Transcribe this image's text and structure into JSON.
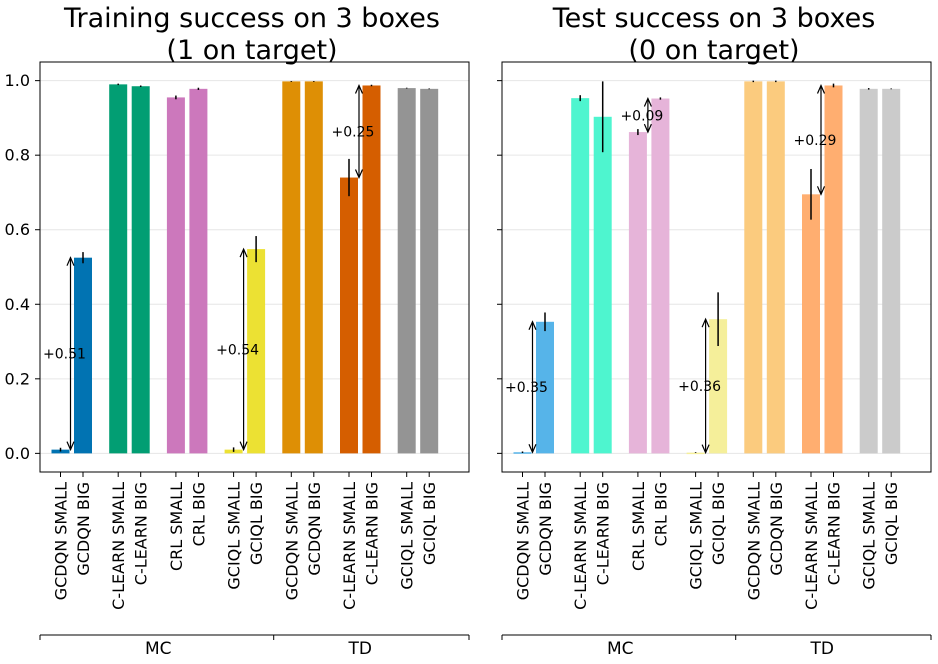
{
  "chart_data": [
    {
      "type": "bar",
      "title": [
        "Training success on 3 boxes",
        "(1 on target)"
      ],
      "categories": [
        "GCDQN SMALL",
        "GCDQN BIG",
        "C-LEARN SMALL",
        "C-LEARN BIG",
        "CRL SMALL",
        "CRL BIG",
        "GCIQL SMALL",
        "GCIQL BIG",
        "GCDQN SMALL",
        "GCDQN BIG",
        "C-LEARN SMALL",
        "C-LEARN BIG",
        "GCIQL SMALL",
        "GCIQL BIG"
      ],
      "values": [
        0.01,
        0.525,
        0.99,
        0.985,
        0.955,
        0.978,
        0.01,
        0.548,
        0.998,
        0.998,
        0.74,
        0.987,
        0.98,
        0.978
      ],
      "errors": [
        0.005,
        0.015,
        0.002,
        0.002,
        0.005,
        0.003,
        0.006,
        0.035,
        0.001,
        0.001,
        0.05,
        0.002,
        0.001,
        0.001
      ],
      "colors": [
        "#0173b2",
        "#0173b2",
        "#029e73",
        "#029e73",
        "#cc78bc",
        "#cc78bc",
        "#ece133",
        "#ece133",
        "#de8f05",
        "#de8f05",
        "#d55e00",
        "#d55e00",
        "#949494",
        "#949494"
      ],
      "groups": [
        {
          "label": "MC",
          "start": 0,
          "end": 7
        },
        {
          "label": "TD",
          "start": 8,
          "end": 13
        }
      ],
      "annotations": [
        {
          "from": 0,
          "to": 1,
          "text": "+0.51"
        },
        {
          "from": 6,
          "to": 7,
          "text": "+0.54"
        },
        {
          "from": 10,
          "to": 11,
          "text": "+0.25"
        }
      ],
      "yticks": [
        "0.0",
        "0.2",
        "0.4",
        "0.6",
        "0.8",
        "1.0"
      ],
      "ylim": [
        -0.05,
        1.05
      ],
      "grid": true
    },
    {
      "type": "bar",
      "title": [
        "Test success on 3 boxes",
        "(0 on target)"
      ],
      "categories": [
        "GCDQN SMALL",
        "GCDQN BIG",
        "C-LEARN SMALL",
        "C-LEARN BIG",
        "CRL SMALL",
        "CRL BIG",
        "GCIQL SMALL",
        "GCIQL BIG",
        "GCDQN SMALL",
        "GCDQN BIG",
        "C-LEARN SMALL",
        "C-LEARN BIG",
        "GCIQL SMALL",
        "GCIQL BIG"
      ],
      "values": [
        0.003,
        0.353,
        0.953,
        0.903,
        0.862,
        0.952,
        0.002,
        0.36,
        0.998,
        0.998,
        0.695,
        0.987,
        0.978,
        0.978
      ],
      "errors": [
        0.002,
        0.025,
        0.008,
        0.095,
        0.008,
        0.003,
        0.001,
        0.072,
        0.002,
        0.002,
        0.068,
        0.005,
        0.002,
        0.001
      ],
      "colors": [
        "#56b4e9",
        "#56b4e9",
        "#4ef5cf",
        "#4ef5cf",
        "#e6b4d9",
        "#e6b4d9",
        "#f5ef9a",
        "#f5ef9a",
        "#fbcb7e",
        "#fbcb7e",
        "#ffae70",
        "#ffae70",
        "#cbcbcb",
        "#cbcbcb"
      ],
      "groups": [
        {
          "label": "MC",
          "start": 0,
          "end": 7
        },
        {
          "label": "TD",
          "start": 8,
          "end": 13
        }
      ],
      "annotations": [
        {
          "from": 0,
          "to": 1,
          "text": "+0.35"
        },
        {
          "from": 4,
          "to": 5,
          "text": "+0.09"
        },
        {
          "from": 6,
          "to": 7,
          "text": "+0.36"
        },
        {
          "from": 10,
          "to": 11,
          "text": "+0.29"
        }
      ],
      "yticks": [
        "0.0",
        "0.2",
        "0.4",
        "0.6",
        "0.8",
        "1.0"
      ],
      "ylim": [
        -0.05,
        1.05
      ],
      "grid": true
    }
  ]
}
